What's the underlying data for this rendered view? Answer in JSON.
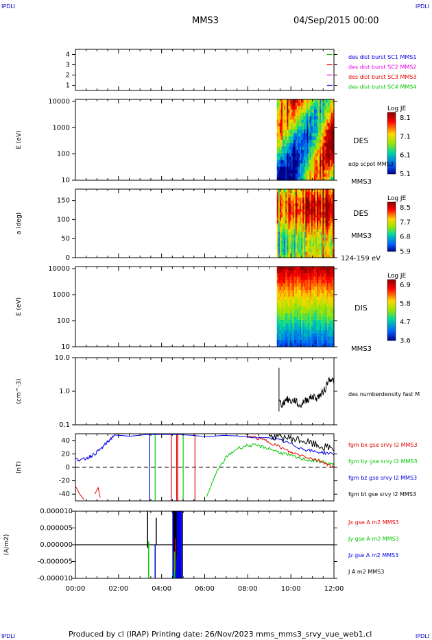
{
  "header": {
    "corner_label": "IPDLI",
    "spacecraft": "MMS3",
    "datetime": "04/Sep/2015 00:00"
  },
  "footer": {
    "text": "Produced by cl (IRAP)   Printing date: 26/Nov/2023   mms_mms3_srvy_vue_web1.cl"
  },
  "colors": {
    "blue": "#0000e6",
    "green": "#00c800",
    "red": "#e60000",
    "magenta": "#e600e6",
    "black": "#000000"
  },
  "chart_data": [
    {
      "type": "scatter",
      "name": "des dist burst availability",
      "ylim": [
        0.5,
        4.5
      ],
      "yticks": [
        "1",
        "2",
        "3",
        "4"
      ],
      "legend": [
        {
          "text": "des dist burst SC1 MMS1",
          "color": "#0000e6"
        },
        {
          "text": "des dist burst SC2 MMS2",
          "color": "#e600e6"
        },
        {
          "text": "des dist burst SC3 MMS3",
          "color": "#e60000"
        },
        {
          "text": "des dist burst SC4 MMS4",
          "color": "#00c800"
        }
      ],
      "marks": [
        {
          "x_hours": 11.8,
          "y": 4,
          "color": "#00c800"
        },
        {
          "x_hours": 11.8,
          "y": 3,
          "color": "#e60000"
        },
        {
          "x_hours": 11.8,
          "y": 2,
          "color": "#e600e6"
        },
        {
          "x_hours": 11.8,
          "y": 1,
          "color": "#0000e6"
        }
      ]
    },
    {
      "type": "heatmap",
      "ylabel": "E (eV)",
      "yscale": "log",
      "yticks": [
        "10",
        "100",
        "1000",
        "10000"
      ],
      "data_start_hours": 9.35,
      "colorbar": {
        "title": "Log JE",
        "ticks": [
          "8.1",
          "7.1",
          "6.1",
          "5.1"
        ]
      },
      "side_labels": [
        "DES",
        "edp scpot MMS3",
        "MMS3"
      ]
    },
    {
      "type": "heatmap",
      "ylabel": "a (deg)",
      "ylim": [
        0,
        180
      ],
      "yticks": [
        "0",
        "50",
        "100",
        "150"
      ],
      "data_start_hours": 9.35,
      "colorbar": {
        "title": "Log JE",
        "ticks": [
          "8.5",
          "7.7",
          "6.8",
          "5.9"
        ]
      },
      "side_labels": [
        "DES",
        "MMS3",
        "124-159 eV"
      ]
    },
    {
      "type": "heatmap",
      "ylabel": "E (eV)",
      "yscale": "log",
      "yticks": [
        "10",
        "100",
        "1000",
        "10000"
      ],
      "data_start_hours": 9.35,
      "colorbar": {
        "title": "Log JE",
        "ticks": [
          "6.9",
          "5.8",
          "4.7",
          "3.6"
        ]
      },
      "side_labels": [
        "DIS",
        "MMS3"
      ]
    },
    {
      "type": "line",
      "ylabel": "(cm^-3)",
      "yscale": "log",
      "ylim": [
        0.1,
        10.0
      ],
      "yticks": [
        "0.1",
        "1.0",
        "10.0"
      ],
      "legend": [
        {
          "text": "des numberdensity fast M",
          "color": "#000000"
        }
      ],
      "series": [
        {
          "color": "#000000",
          "x_hours": [
            9.45,
            9.6,
            9.8,
            10.0,
            10.2,
            10.4,
            10.6,
            10.8,
            11.0,
            11.2,
            11.4,
            11.6,
            11.8,
            12.0
          ],
          "values": [
            0.5,
            0.4,
            0.6,
            0.5,
            0.55,
            0.35,
            0.5,
            0.6,
            0.7,
            0.65,
            0.8,
            1.2,
            2.5,
            2.0
          ]
        }
      ]
    },
    {
      "type": "line",
      "ylabel": "(nT)",
      "ylim": [
        -50,
        50
      ],
      "yticks": [
        "-40",
        "-20",
        "0",
        "20",
        "40"
      ],
      "legend": [
        {
          "text": "fgm bx gse srvy l2 MMS3",
          "color": "#e60000"
        },
        {
          "text": "fgm by gse srvy l2 MMS3",
          "color": "#00c800"
        },
        {
          "text": "fgm bz gse srvy l2 MMS3",
          "color": "#0000e6"
        },
        {
          "text": "fgm bt gse srvy l2 MMS3",
          "color": "#000000"
        }
      ],
      "series": [
        {
          "color": "#00c800",
          "x_hours": [
            6.1,
            6.5,
            7.0,
            7.5,
            8.0,
            8.5,
            9.0,
            9.5,
            10.0,
            10.5,
            11.0,
            11.5,
            12.0
          ],
          "values": [
            -45,
            -10,
            15,
            28,
            33,
            32,
            28,
            22,
            17,
            13,
            10,
            8,
            4
          ]
        },
        {
          "color": "#e60000",
          "x_hours": [
            7.9,
            8.5,
            9.0,
            9.5,
            10.0,
            10.5,
            11.0,
            11.5,
            12.0
          ],
          "values": [
            48,
            43,
            38,
            30,
            22,
            18,
            13,
            8,
            0
          ]
        },
        {
          "color": "#0000e6",
          "x_hours": [
            0.0,
            0.3,
            0.6,
            0.9,
            1.2,
            1.5,
            1.8,
            9.0,
            9.5,
            10.0,
            10.5,
            11.0,
            11.5,
            12.0
          ],
          "values": [
            12,
            11,
            15,
            20,
            28,
            38,
            48,
            45,
            40,
            35,
            28,
            24,
            22,
            20
          ]
        },
        {
          "color": "#000000",
          "x_hours": [
            9.0,
            9.5,
            10.0,
            10.5,
            11.0,
            11.5,
            12.0
          ],
          "values": [
            47,
            46,
            43,
            40,
            35,
            30,
            28
          ]
        }
      ]
    },
    {
      "type": "line",
      "ylabel": "(A/m2)",
      "ylim": [
        -1e-05,
        1e-05
      ],
      "yticks": [
        "-0.000010",
        "-0.000005",
        "0.000000",
        "0.000005",
        "0.000010"
      ],
      "legend": [
        {
          "text": "Jx gse A m2 MMS3",
          "color": "#e60000"
        },
        {
          "text": "Jy gse A m2 MMS3",
          "color": "#00c800"
        },
        {
          "text": "Jz gse A m2 MMS3",
          "color": "#0000e6"
        },
        {
          "text": "J A m2 MMS3",
          "color": "#000000"
        }
      ]
    }
  ],
  "x_axis": {
    "xlim_hours": [
      0,
      12
    ],
    "tick_labels": [
      "00:00",
      "02:00",
      "04:00",
      "06:00",
      "08:00",
      "10:00",
      "12:00"
    ]
  }
}
